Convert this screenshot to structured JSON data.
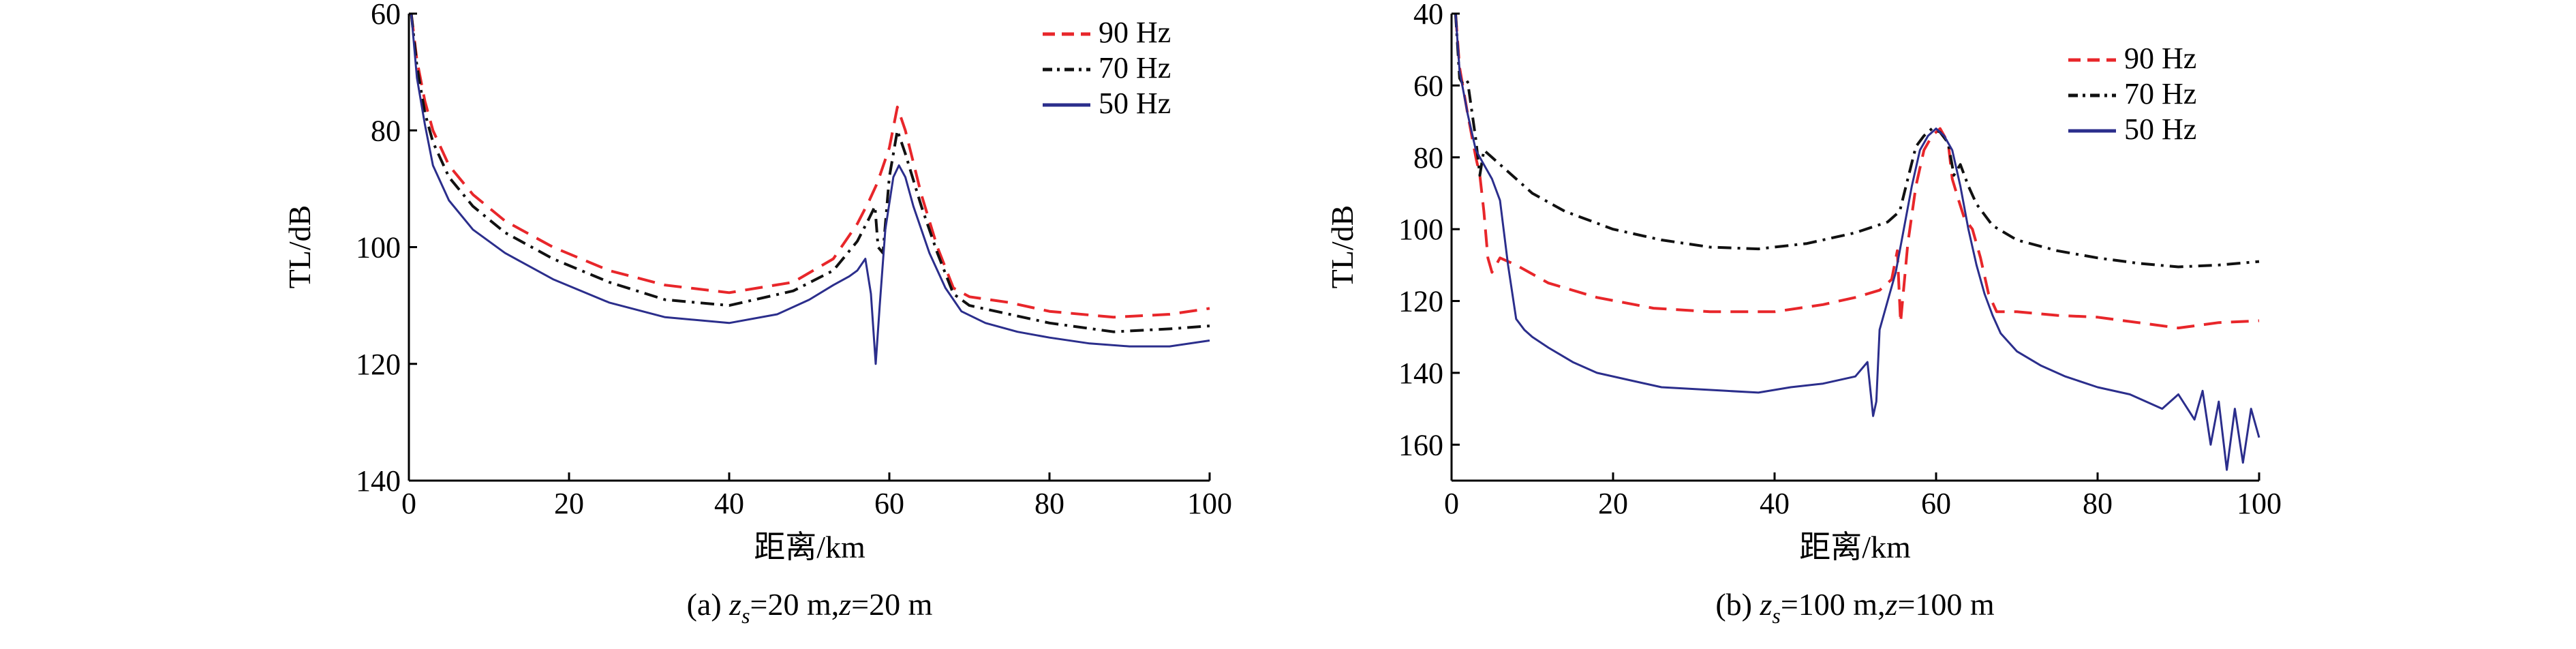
{
  "chart_data": [
    {
      "type": "line",
      "id": "a",
      "caption_prefix": "(a) ",
      "caption_var1": "z",
      "caption_sub": "s",
      "caption_mid": "=20 m,",
      "caption_var2": "z",
      "caption_end": "=20 m",
      "xlabel": "距离/km",
      "ylabel": "TL/dB",
      "xlim": [
        0,
        100
      ],
      "ylim": [
        60,
        140
      ],
      "y_inverted": true,
      "xticks": [
        0,
        20,
        40,
        60,
        80,
        100
      ],
      "yticks": [
        60,
        80,
        100,
        120,
        140
      ],
      "legend_position": "top-right",
      "series": [
        {
          "name": "90 Hz",
          "color": "#e8262a",
          "dash": "dashed",
          "x": [
            0.3,
            1,
            2,
            3,
            5,
            8,
            12,
            18,
            25,
            32,
            40,
            48,
            53,
            56,
            57.5,
            58.5,
            60,
            61,
            62,
            64,
            66,
            68,
            70,
            75,
            80,
            88,
            95,
            100
          ],
          "y": [
            60,
            68,
            75,
            80,
            86,
            91,
            95.5,
            100,
            104,
            106.5,
            107.8,
            106,
            102,
            96,
            92,
            89,
            83,
            76,
            80,
            91,
            100,
            107,
            108.5,
            109.5,
            111,
            112,
            111.5,
            110.5
          ]
        },
        {
          "name": "70 Hz",
          "color": "#111111",
          "dash": "dashdot",
          "x": [
            0.3,
            1,
            2,
            3,
            5,
            8,
            12,
            18,
            25,
            32,
            40,
            48,
            53,
            56,
            57.5,
            58.2,
            58.6,
            59.2,
            60,
            61,
            62,
            64,
            66,
            68,
            70,
            75,
            80,
            88,
            95,
            100
          ],
          "y": [
            60,
            69,
            77,
            82,
            88,
            93,
            97.5,
            102,
            106,
            109,
            110,
            107.5,
            104,
            99,
            95,
            93,
            100,
            101,
            88,
            80,
            84,
            93,
            101,
            108,
            110,
            111.5,
            113,
            114.5,
            114,
            113.5
          ]
        },
        {
          "name": "50 Hz",
          "color": "#2b2e8c",
          "dash": "solid",
          "x": [
            0.3,
            1,
            2,
            3,
            5,
            8,
            12,
            18,
            25,
            32,
            40,
            46,
            50,
            53,
            55,
            56,
            57,
            57.7,
            58.3,
            58.8,
            59.5,
            60.5,
            61.2,
            62,
            63,
            65,
            67,
            69,
            72,
            76,
            80,
            85,
            90,
            95,
            100
          ],
          "y": [
            60,
            71,
            79,
            86,
            92,
            97,
            101,
            105.5,
            109.5,
            112,
            113,
            111.5,
            109,
            106.5,
            105,
            104,
            102,
            108,
            120,
            110,
            97,
            88,
            86,
            88,
            93,
            101,
            107,
            111,
            113,
            114.5,
            115.5,
            116.5,
            117,
            117,
            116
          ]
        }
      ]
    },
    {
      "type": "line",
      "id": "b",
      "caption_prefix": "(b) ",
      "caption_var1": "z",
      "caption_sub": "s",
      "caption_mid": "=100 m,",
      "caption_var2": "z",
      "caption_end": "=100 m",
      "xlabel": "距离/km",
      "ylabel": "TL/dB",
      "xlim": [
        0,
        100
      ],
      "ylim": [
        40,
        170
      ],
      "y_inverted": true,
      "xticks": [
        0,
        20,
        40,
        60,
        80,
        100
      ],
      "yticks": [
        40,
        60,
        80,
        100,
        120,
        140,
        160
      ],
      "legend_position": "top-right",
      "series": [
        {
          "name": "90 Hz",
          "color": "#e8262a",
          "dash": "dashed",
          "x": [
            0.5,
            1,
            2,
            3,
            3.5,
            4,
            4.5,
            5,
            6,
            8,
            12,
            18,
            25,
            32,
            40,
            46,
            50,
            53,
            54.5,
            55.2,
            55.6,
            56.5,
            57.5,
            58.5,
            59.5,
            60.5,
            61.5,
            62,
            62.8,
            63.5,
            64.5,
            65.5,
            66.5,
            67.5,
            70,
            75,
            80,
            85,
            90,
            95,
            100
          ],
          "y": [
            40,
            55,
            68,
            80,
            85,
            95,
            108,
            112,
            108,
            110,
            115,
            119,
            122,
            123,
            123,
            121,
            119,
            117,
            114,
            106,
            126,
            104,
            88,
            78,
            74,
            72,
            76,
            86,
            92,
            97,
            100,
            108,
            118,
            123,
            123,
            124,
            124.5,
            126,
            127.5,
            126,
            125.5
          ]
        },
        {
          "name": "70 Hz",
          "color": "#111111",
          "dash": "dashdot",
          "x": [
            0.5,
            1,
            1.5,
            2,
            3,
            3.5,
            4,
            5,
            6,
            8,
            10,
            14,
            20,
            26,
            32,
            38,
            44,
            50,
            54,
            55.5,
            56.5,
            57.5,
            58.5,
            59.5,
            60.5,
            61.5,
            62.2,
            63,
            64,
            65,
            67,
            70,
            75,
            80,
            85,
            90,
            95,
            100
          ],
          "y": [
            40,
            58,
            60,
            59,
            75,
            85,
            78,
            80,
            82,
            86,
            90,
            95,
            100,
            103,
            105,
            105.5,
            104,
            101,
            98,
            95,
            86,
            77,
            74,
            72,
            73,
            76,
            85,
            82,
            88,
            93,
            99,
            103,
            106,
            108,
            109.5,
            110.5,
            110,
            109
          ]
        },
        {
          "name": "50 Hz",
          "color": "#2b2e8c",
          "dash": "solid",
          "x": [
            0.5,
            1,
            2,
            3,
            4,
            5,
            6,
            7,
            8,
            9,
            10,
            12,
            15,
            18,
            22,
            26,
            30,
            34,
            38,
            42,
            46,
            50,
            51.5,
            52.2,
            52.6,
            53,
            54,
            55,
            56,
            57,
            58,
            59,
            60,
            61,
            62,
            63,
            64,
            65,
            66,
            67,
            68,
            70,
            73,
            76,
            80,
            84,
            88,
            90,
            92,
            93,
            94,
            95,
            96,
            97,
            98,
            99,
            100
          ],
          "y": [
            40,
            56,
            68,
            78,
            82,
            86,
            92,
            110,
            125,
            128,
            130,
            133,
            137,
            140,
            142,
            144,
            144.5,
            145,
            145.5,
            144,
            143,
            141,
            137,
            152,
            148,
            128,
            120,
            112,
            100,
            88,
            78,
            74,
            72,
            74,
            78,
            88,
            100,
            110,
            118,
            124,
            129,
            134,
            138,
            141,
            144,
            146,
            150,
            146,
            153,
            145,
            160,
            148,
            167,
            150,
            165,
            150,
            158
          ]
        }
      ]
    }
  ]
}
